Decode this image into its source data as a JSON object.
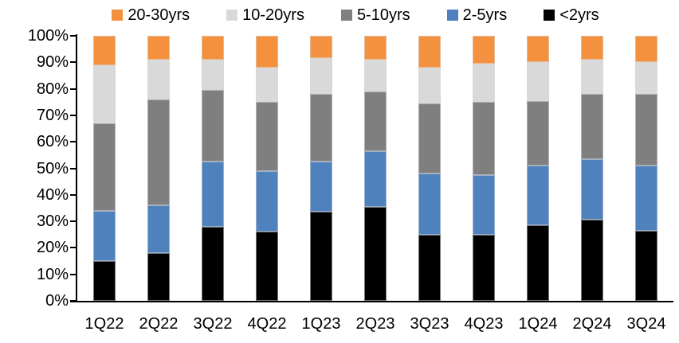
{
  "legend": [
    {
      "label": "20-30yrs",
      "color": "#F4913E"
    },
    {
      "label": "10-20yrs",
      "color": "#D9D9D9"
    },
    {
      "label": "5-10yrs",
      "color": "#7F7F7F"
    },
    {
      "label": "2-5yrs",
      "color": "#4F81BD"
    },
    {
      "label": "<2yrs",
      "color": "#000000"
    }
  ],
  "colors": {
    "axis": "#000000",
    "background": "#FFFFFF",
    "orange": "#F4913E",
    "light_gray": "#D9D9D9",
    "gray": "#7F7F7F",
    "blue": "#4F81BD",
    "black": "#000000"
  },
  "chart_data": {
    "type": "bar",
    "stacked": true,
    "percent_stacked": true,
    "title": "",
    "xlabel": "",
    "ylabel": "",
    "unit": "%",
    "ylim": [
      0,
      100
    ],
    "grid": false,
    "legend_position": "top",
    "categories": [
      "1Q22",
      "2Q22",
      "3Q22",
      "4Q22",
      "1Q23",
      "2Q23",
      "3Q23",
      "4Q23",
      "1Q24",
      "2Q24",
      "3Q24"
    ],
    "yticks": [
      "0%",
      "10%",
      "20%",
      "30%",
      "40%",
      "50%",
      "60%",
      "70%",
      "80%",
      "90%",
      "100%"
    ],
    "ytick_values": [
      0,
      10,
      20,
      30,
      40,
      50,
      60,
      70,
      80,
      90,
      100
    ],
    "series": [
      {
        "name": "<2yrs",
        "color": "#000000",
        "values": [
          15,
          18,
          28,
          26,
          33.5,
          35.5,
          25,
          25,
          28.5,
          30.5,
          26.5
        ]
      },
      {
        "name": "2-5yrs",
        "color": "#4F81BD",
        "values": [
          19,
          18,
          24.5,
          23,
          19,
          21,
          23,
          22.5,
          22.5,
          23,
          24.5
        ]
      },
      {
        "name": "5-10yrs",
        "color": "#7F7F7F",
        "values": [
          33,
          40,
          27,
          26,
          25.5,
          22.5,
          26.5,
          27.5,
          24.5,
          24.5,
          27
        ]
      },
      {
        "name": "10-20yrs",
        "color": "#D9D9D9",
        "values": [
          22,
          15,
          11.5,
          13,
          13.5,
          12,
          13.5,
          14.5,
          14.5,
          13,
          12
        ]
      },
      {
        "name": "20-30yrs",
        "color": "#F4913E",
        "values": [
          11,
          9,
          9,
          12,
          8.5,
          9,
          12,
          10.5,
          10,
          9,
          10
        ]
      }
    ]
  }
}
